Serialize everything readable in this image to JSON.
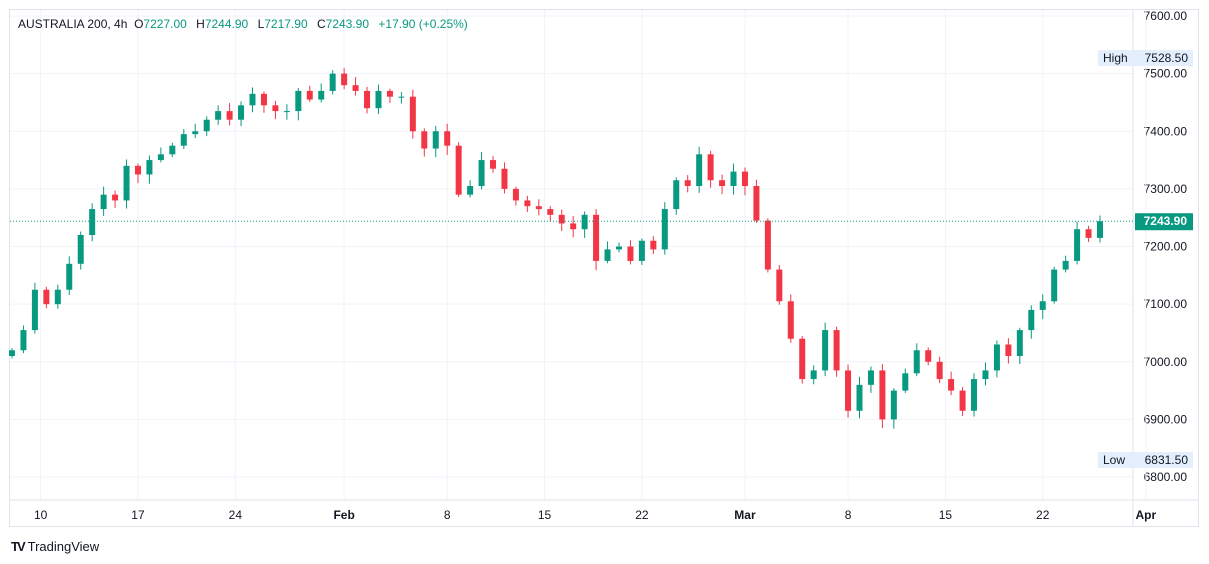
{
  "header": {
    "symbol": "AUSTRALIA 200, 4h",
    "open_label": "O",
    "open": "7227.00",
    "high_label": "H",
    "high": "7244.90",
    "low_label": "L",
    "low": "7217.90",
    "close_label": "C",
    "close": "7243.90",
    "change": "+17.90 (+0.25%)"
  },
  "branding": "TradingView",
  "colors": {
    "up": "#089981",
    "down": "#F23645",
    "grid": "#f0f3fa"
  },
  "chart_data": {
    "type": "candlestick",
    "title": "AUSTRALIA 200, 4h",
    "ylim": [
      6780,
      7620
    ],
    "y_ticks": [
      "7600.00",
      "7500.00",
      "7400.00",
      "7300.00",
      "7200.00",
      "7100.00",
      "7000.00",
      "6900.00",
      "6800.00"
    ],
    "y_tick_values": [
      7600,
      7500,
      7400,
      7300,
      7200,
      7100,
      7000,
      6900,
      6800
    ],
    "x_ticks": [
      "10",
      "17",
      "24",
      "Feb",
      "8",
      "15",
      "22",
      "Mar",
      "8",
      "15",
      "22",
      "Apr"
    ],
    "x_tick_candle_index": [
      2.5,
      11,
      19.5,
      29,
      38,
      46.5,
      55,
      64,
      73,
      81.5,
      90,
      99
    ],
    "last_price": 7243.9,
    "last_price_label": "7243.90",
    "high_label": "High",
    "high_value": "7528.50",
    "low_label": "Low",
    "low_value": "6831.50",
    "first_open": 7010,
    "closes": [
      7020,
      7055,
      7125,
      7100,
      7125,
      7170,
      7220,
      7265,
      7290,
      7280,
      7340,
      7325,
      7350,
      7360,
      7375,
      7395,
      7400,
      7420,
      7435,
      7420,
      7445,
      7465,
      7445,
      7435,
      7435,
      7470,
      7455,
      7470,
      7500,
      7480,
      7470,
      7440,
      7470,
      7460,
      7460,
      7400,
      7370,
      7400,
      7375,
      7290,
      7305,
      7350,
      7335,
      7300,
      7280,
      7270,
      7265,
      7255,
      7240,
      7230,
      7255,
      7175,
      7195,
      7200,
      7175,
      7210,
      7195,
      7265,
      7315,
      7305,
      7360,
      7315,
      7305,
      7330,
      7305,
      7245,
      7160,
      7105,
      7040,
      6970,
      6985,
      7055,
      6985,
      6915,
      6960,
      6985,
      6900,
      6950,
      6980,
      7020,
      7000,
      6970,
      6950,
      6915,
      6970,
      6985,
      7030,
      7010,
      7055,
      7090,
      7105,
      7160,
      7175,
      7230,
      7215,
      7243.9
    ]
  }
}
